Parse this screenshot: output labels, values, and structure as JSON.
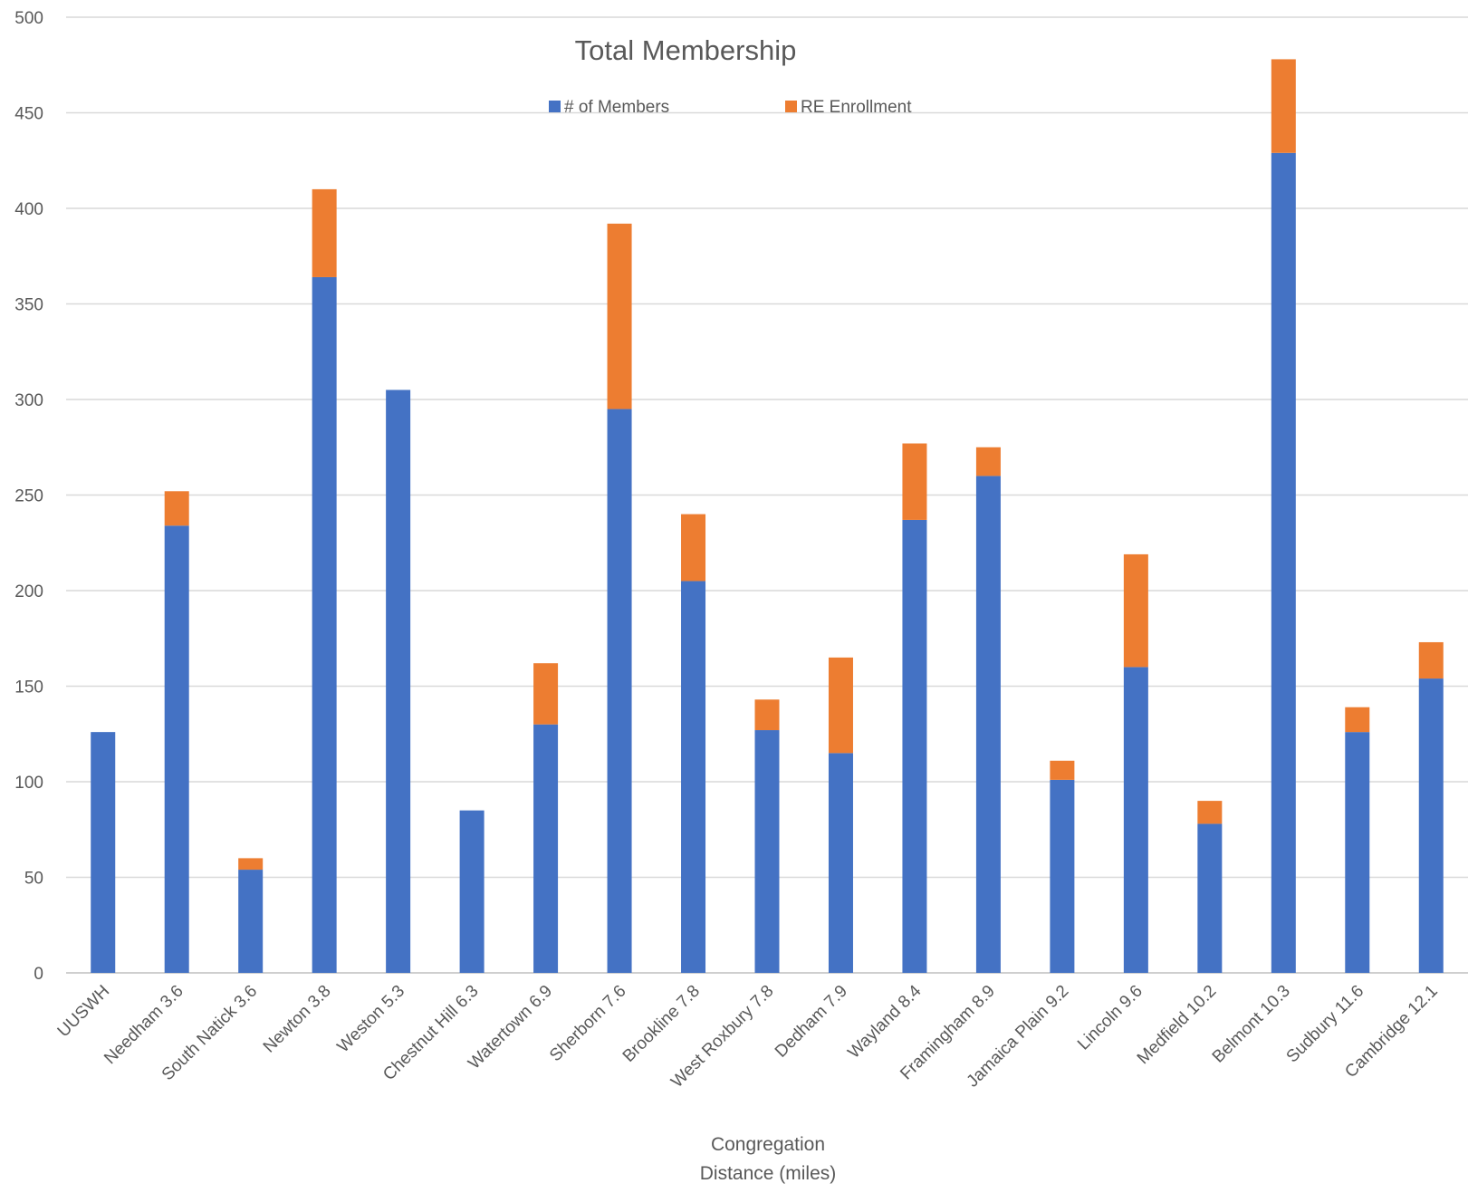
{
  "chart_data": {
    "type": "bar",
    "stacked": true,
    "title": "Total Membership",
    "xlabel": [
      "Congregation",
      "Distance (miles)"
    ],
    "ylabel": "",
    "ylim": [
      0,
      500
    ],
    "yticks": [
      0,
      50,
      100,
      150,
      200,
      250,
      300,
      350,
      400,
      450,
      500
    ],
    "grid": true,
    "legend_position": "top",
    "categories": [
      "UUSWH",
      "Needham 3.6",
      "South Natick 3.6",
      "Newton 3.8",
      "Weston 5.3",
      "Chestnut Hill 6.3",
      "Watertown 6.9",
      "Sherborn 7.6",
      "Brookline 7.8",
      "West Roxbury 7.8",
      "Dedham 7.9",
      "Wayland 8.4",
      "Framingham 8.9",
      "Jamaica Plain 9.2",
      "Lincoln 9.6",
      "Medfield 10.2",
      "Belmont 10.3",
      "Sudbury 11.6",
      "Cambridge 12.1"
    ],
    "series": [
      {
        "name": "# of Members",
        "color": "#4472C4",
        "values": [
          126,
          234,
          54,
          364,
          305,
          85,
          130,
          295,
          205,
          127,
          115,
          237,
          260,
          101,
          160,
          78,
          429,
          126,
          154
        ]
      },
      {
        "name": "RE Enrollment",
        "color": "#ED7D31",
        "values": [
          0,
          18,
          6,
          46,
          0,
          0,
          32,
          97,
          35,
          16,
          50,
          40,
          15,
          10,
          59,
          12,
          49,
          13,
          19
        ]
      }
    ]
  },
  "colors": {
    "gridline": "#D9D9D9",
    "axis_line": "#BFBFBF",
    "text": "#595959"
  }
}
